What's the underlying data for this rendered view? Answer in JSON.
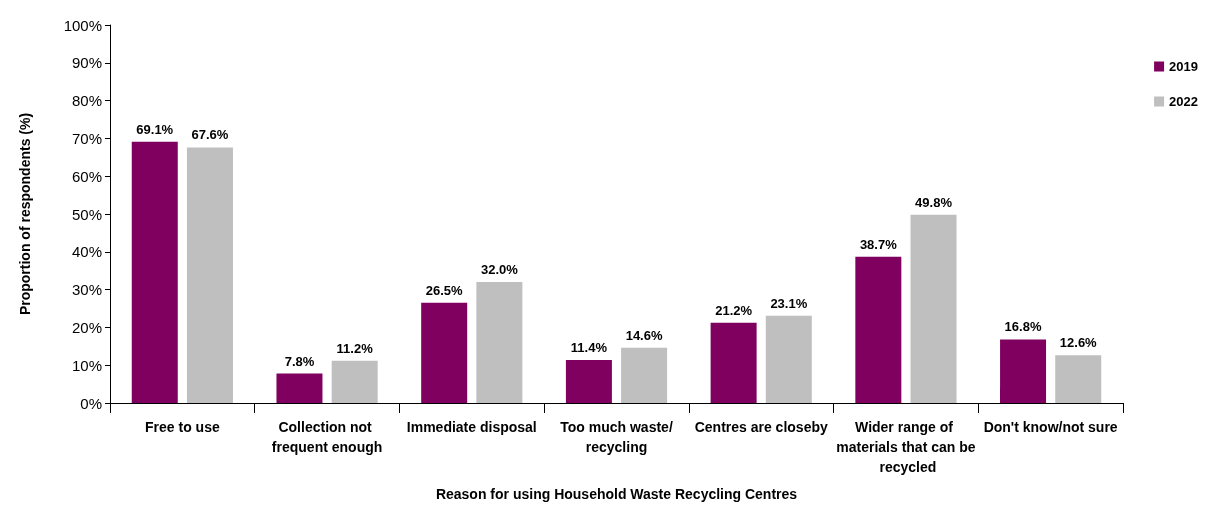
{
  "chart_data": {
    "type": "bar",
    "xlabel": "Reason for using Household Waste Recycling Centres",
    "ylabel": "Proportion of respondents (%)",
    "categories": [
      "Free to use",
      "Collection not frequent enough",
      "Immediate disposal",
      "Too much waste/recycling",
      "Centres are closeby",
      "Wider range of materials that can be recycled",
      "Don't know/not sure"
    ],
    "series": [
      {
        "name": "2019",
        "color": "#7f005f",
        "values": [
          69.1,
          7.8,
          26.5,
          11.4,
          21.2,
          38.7,
          16.8
        ],
        "value_labels": [
          "69.1%",
          "7.8%",
          "26.5%",
          "11.4%",
          "21.2%",
          "38.7%",
          "16.8%"
        ]
      },
      {
        "name": "2022",
        "color": "#bfbfbf",
        "values": [
          67.6,
          11.2,
          32.0,
          14.6,
          23.1,
          49.8,
          12.6
        ],
        "value_labels": [
          "67.6%",
          "11.2%",
          "32.0%",
          "14.6%",
          "23.1%",
          "49.8%",
          "12.6%"
        ]
      }
    ],
    "ylim": [
      0,
      100
    ],
    "yticks": [
      {
        "value": 0,
        "label": "0%"
      },
      {
        "value": 10,
        "label": "10%"
      },
      {
        "value": 20,
        "label": "20%"
      },
      {
        "value": 30,
        "label": "30%"
      },
      {
        "value": 40,
        "label": "40%"
      },
      {
        "value": 50,
        "label": "50%"
      },
      {
        "value": 60,
        "label": "60%"
      },
      {
        "value": 70,
        "label": "70%"
      },
      {
        "value": 80,
        "label": "80%"
      },
      {
        "value": 90,
        "label": "90%"
      },
      {
        "value": 100,
        "label": "100%"
      }
    ],
    "grid": false,
    "legend": "top right"
  }
}
